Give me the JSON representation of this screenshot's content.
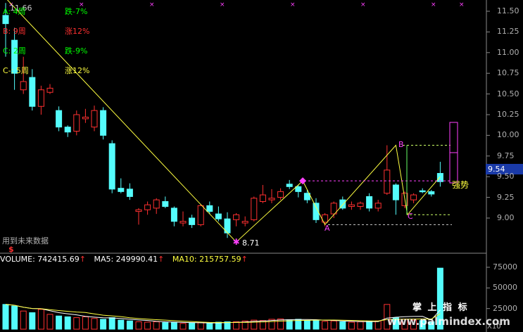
{
  "colors": {
    "up": "#ff3030",
    "down": "#54fcfc",
    "zigzag": "#ffff40",
    "magenta": "#ff40ff",
    "white": "#ffffff",
    "axis": "#b0b0b0"
  },
  "header_price": "11.66",
  "wave_table": [
    {
      "name": "A",
      "sep": "",
      "weeks": "4周",
      "change": "跌-7%",
      "color": "#00ff00"
    },
    {
      "name": "B",
      "sep": "",
      "weeks": "9周",
      "change": "涨12%",
      "color": "#ff3030"
    },
    {
      "name": "C",
      "sep": "",
      "weeks": "2周",
      "change": "跌-9%",
      "color": "#00ff00"
    },
    {
      "name": "C",
      "sep": "-",
      "weeks": "5周",
      "change": "涨12%",
      "color": "#ffff40"
    }
  ],
  "low_label": "8.71",
  "point_labels": {
    "A": "A",
    "B": "B",
    "C": "C"
  },
  "strong_label": "强势",
  "future_data_note": "用到未来数据",
  "future_marker": "$",
  "current_price": "9.54",
  "price_axis": [
    "11.50",
    "11.25",
    "11.00",
    "10.75",
    "10.50",
    "10.25",
    "10.00",
    "9.75",
    "9.50",
    "9.25",
    "9.00"
  ],
  "volume_axis": [
    "75000",
    "50000",
    "25000"
  ],
  "volume_unit": "X10",
  "volume_bar": {
    "volume": "VOLUME: 742415.69",
    "ma5": "MA5: 249990.41",
    "ma10": "MA10: 215757.59",
    "arrow": "↑"
  },
  "watermark": {
    "title": "掌 上 指 标",
    "url": "www.palmindex.com"
  },
  "chart_data": {
    "type": "candlestick",
    "ylim": [
      8.8,
      11.66
    ],
    "candles": [
      {
        "o": 11.35,
        "h": 11.6,
        "l": 10.95,
        "c": 11.45,
        "up": false
      },
      {
        "o": 11.15,
        "h": 11.3,
        "l": 10.55,
        "c": 10.75,
        "up": false
      },
      {
        "o": 10.55,
        "h": 10.95,
        "l": 10.5,
        "c": 10.65,
        "up": true
      },
      {
        "o": 10.7,
        "h": 10.8,
        "l": 10.3,
        "c": 10.35,
        "up": false
      },
      {
        "o": 10.35,
        "h": 10.6,
        "l": 10.25,
        "c": 10.55,
        "up": true
      },
      {
        "o": 10.57,
        "h": 10.62,
        "l": 10.5,
        "c": 10.52,
        "up": true
      },
      {
        "o": 10.3,
        "h": 10.35,
        "l": 10.05,
        "c": 10.1,
        "up": false
      },
      {
        "o": 10.1,
        "h": 10.12,
        "l": 9.98,
        "c": 10.04,
        "up": false
      },
      {
        "o": 10.05,
        "h": 10.3,
        "l": 10.0,
        "c": 10.25,
        "up": true
      },
      {
        "o": 10.2,
        "h": 10.32,
        "l": 10.15,
        "c": 10.22,
        "up": true
      },
      {
        "o": 10.1,
        "h": 10.36,
        "l": 10.05,
        "c": 10.3,
        "up": true
      },
      {
        "o": 10.3,
        "h": 10.34,
        "l": 9.95,
        "c": 10.0,
        "up": false
      },
      {
        "o": 9.9,
        "h": 9.94,
        "l": 9.3,
        "c": 9.35,
        "up": false
      },
      {
        "o": 9.36,
        "h": 9.48,
        "l": 9.3,
        "c": 9.32,
        "up": false
      },
      {
        "o": 9.35,
        "h": 9.42,
        "l": 9.22,
        "c": 9.26,
        "up": false
      },
      {
        "o": 9.08,
        "h": 9.12,
        "l": 8.92,
        "c": 9.1,
        "up": true
      },
      {
        "o": 9.1,
        "h": 9.2,
        "l": 9.04,
        "c": 9.16,
        "up": true
      },
      {
        "o": 9.12,
        "h": 9.24,
        "l": 9.05,
        "c": 9.22,
        "up": true
      },
      {
        "o": 9.2,
        "h": 9.26,
        "l": 9.12,
        "c": 9.14,
        "up": false
      },
      {
        "o": 9.12,
        "h": 9.14,
        "l": 8.9,
        "c": 8.96,
        "up": false
      },
      {
        "o": 8.96,
        "h": 9.08,
        "l": 8.9,
        "c": 8.94,
        "up": true
      },
      {
        "o": 9.0,
        "h": 9.04,
        "l": 8.88,
        "c": 8.92,
        "up": false
      },
      {
        "o": 8.92,
        "h": 9.17,
        "l": 8.9,
        "c": 9.15,
        "up": true
      },
      {
        "o": 9.15,
        "h": 9.2,
        "l": 9.05,
        "c": 9.08,
        "up": false
      },
      {
        "o": 9.05,
        "h": 9.14,
        "l": 8.96,
        "c": 8.99,
        "up": false
      },
      {
        "o": 8.99,
        "h": 9.07,
        "l": 8.76,
        "c": 8.82,
        "up": false
      },
      {
        "o": 8.98,
        "h": 9.06,
        "l": 8.9,
        "c": 9.04,
        "up": true
      },
      {
        "o": 8.96,
        "h": 9.02,
        "l": 8.9,
        "c": 8.94,
        "up": true
      },
      {
        "o": 8.98,
        "h": 9.26,
        "l": 8.96,
        "c": 9.24,
        "up": true
      },
      {
        "o": 9.2,
        "h": 9.4,
        "l": 9.18,
        "c": 9.28,
        "up": true
      },
      {
        "o": 9.22,
        "h": 9.35,
        "l": 9.18,
        "c": 9.24,
        "up": true
      },
      {
        "o": 9.25,
        "h": 9.36,
        "l": 9.22,
        "c": 9.32,
        "up": true
      },
      {
        "o": 9.38,
        "h": 9.46,
        "l": 9.35,
        "c": 9.41,
        "up": false
      },
      {
        "o": 9.38,
        "h": 9.4,
        "l": 9.25,
        "c": 9.32,
        "up": false
      },
      {
        "o": 9.3,
        "h": 9.34,
        "l": 9.18,
        "c": 9.22,
        "up": false
      },
      {
        "o": 9.18,
        "h": 9.24,
        "l": 8.94,
        "c": 8.98,
        "up": false
      },
      {
        "o": 8.95,
        "h": 9.06,
        "l": 8.9,
        "c": 9.04,
        "up": true
      },
      {
        "o": 9.05,
        "h": 9.2,
        "l": 9.0,
        "c": 9.18,
        "up": true
      },
      {
        "o": 9.22,
        "h": 9.26,
        "l": 9.1,
        "c": 9.12,
        "up": false
      },
      {
        "o": 9.14,
        "h": 9.2,
        "l": 9.1,
        "c": 9.16,
        "up": true
      },
      {
        "o": 9.14,
        "h": 9.2,
        "l": 9.1,
        "c": 9.18,
        "up": true
      },
      {
        "o": 9.26,
        "h": 9.3,
        "l": 9.08,
        "c": 9.12,
        "up": false
      },
      {
        "o": 9.12,
        "h": 9.22,
        "l": 9.08,
        "c": 9.18,
        "up": true
      },
      {
        "o": 9.3,
        "h": 9.88,
        "l": 9.28,
        "c": 9.58,
        "up": true
      },
      {
        "o": 9.4,
        "h": 9.42,
        "l": 9.04,
        "c": 9.22,
        "up": false
      },
      {
        "o": 9.15,
        "h": 9.32,
        "l": 9.12,
        "c": 9.3,
        "up": true
      },
      {
        "o": 9.22,
        "h": 9.3,
        "l": 9.18,
        "c": 9.28,
        "up": true
      },
      {
        "o": 9.33,
        "h": 9.36,
        "l": 9.3,
        "c": 9.32,
        "up": false
      },
      {
        "o": 9.32,
        "h": 9.34,
        "l": 9.26,
        "c": 9.29,
        "up": false
      },
      {
        "o": 9.44,
        "h": 9.68,
        "l": 9.38,
        "c": 9.54,
        "up": false
      }
    ],
    "zigzag_prices": [
      11.66,
      8.71,
      9.45,
      8.92,
      9.88,
      9.04,
      9.5
    ],
    "volumes": [
      30000,
      28000,
      22000,
      20000,
      24000,
      18000,
      16000,
      15000,
      14000,
      15000,
      13000,
      12000,
      14000,
      11000,
      10000,
      9000,
      8500,
      9000,
      8000,
      8500,
      7000,
      7500,
      8000,
      7000,
      8500,
      9000,
      9000,
      10000,
      11000,
      10500,
      12000,
      12500,
      11500,
      12000,
      10500,
      11000,
      9500,
      10000,
      9000,
      8500,
      9000,
      9500,
      10000,
      30000,
      14000,
      12000,
      11000,
      10500,
      9000,
      74000
    ]
  }
}
